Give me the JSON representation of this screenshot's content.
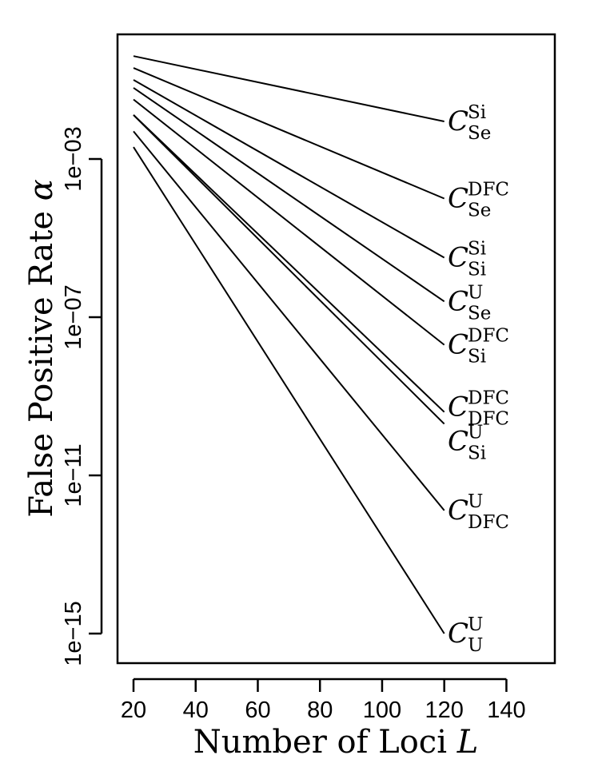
{
  "chart_data": {
    "type": "line",
    "title": "",
    "xlabel": "Number of Loci",
    "xlabel_symbol": "L",
    "ylabel": "False Positive Rate",
    "ylabel_symbol": "α",
    "xlim": [
      15,
      155
    ],
    "ylim_log10": [
      -16,
      3
    ],
    "y_scale": "log",
    "grid": false,
    "x_ticks": [
      20,
      40,
      60,
      80,
      100,
      120,
      140
    ],
    "x_tick_labels": [
      "20",
      "40",
      "60",
      "80",
      "100",
      "120",
      "140"
    ],
    "y_ticks_log10": [
      -3,
      -7,
      -11,
      -15
    ],
    "y_tick_labels": [
      "1e−03",
      "1e−07",
      "1e−11",
      "1e−15"
    ],
    "series": [
      {
        "label_main": "C",
        "label_sup": "Si",
        "label_sub": "Se",
        "x": [
          20,
          120
        ],
        "y": [
          0.4,
          0.0089
        ]
      },
      {
        "label_main": "C",
        "label_sup": "DFC",
        "label_sub": "Se",
        "x": [
          20,
          120
        ],
        "y": [
          0.2,
          0.0001
        ]
      },
      {
        "label_main": "C",
        "label_sup": "Si",
        "label_sub": "Si",
        "x": [
          20,
          120
        ],
        "y": [
          0.1,
          3.2e-06
        ]
      },
      {
        "label_main": "C",
        "label_sup": "U",
        "label_sub": "Se",
        "x": [
          20,
          120
        ],
        "y": [
          0.063,
          2.5e-07
        ]
      },
      {
        "label_main": "C",
        "label_sup": "DFC",
        "label_sub": "Si",
        "x": [
          20,
          120
        ],
        "y": [
          0.032,
          2e-08
        ]
      },
      {
        "label_main": "C",
        "label_sup": "DFC",
        "label_sub": "DFC",
        "x": [
          20,
          120
        ],
        "y": [
          0.013,
          4e-10
        ]
      },
      {
        "label_main": "C",
        "label_sup": "U",
        "label_sub": "Si",
        "x": [
          20,
          120
        ],
        "y": [
          0.013,
          2e-10
        ]
      },
      {
        "label_main": "C",
        "label_sup": "U",
        "label_sub": "DFC",
        "x": [
          20,
          120
        ],
        "y": [
          0.005,
          1.3e-12
        ]
      },
      {
        "label_main": "C",
        "label_sup": "U",
        "label_sub": "U",
        "x": [
          20,
          120
        ],
        "y": [
          0.002,
          1e-15
        ]
      }
    ]
  }
}
